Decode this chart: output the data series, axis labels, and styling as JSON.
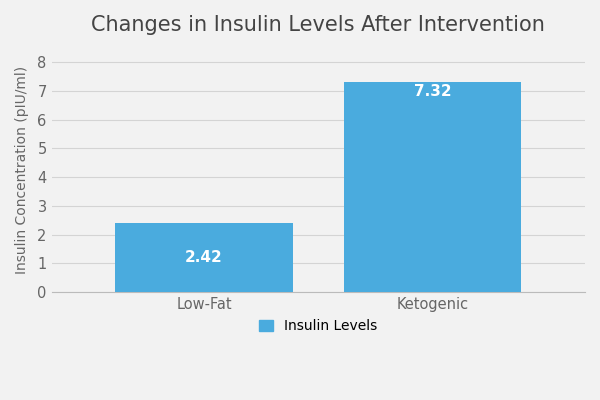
{
  "title": "Changes in Insulin Levels After Intervention",
  "categories": [
    "Low-Fat",
    "Ketogenic"
  ],
  "values": [
    2.42,
    7.32
  ],
  "bar_color": "#4AABDE",
  "bar_labels": [
    "2.42",
    "7.32"
  ],
  "ylabel": "Insulin Concentration (pIU/ml)",
  "ylim": [
    0,
    8.5
  ],
  "yticks": [
    0,
    1,
    2,
    3,
    4,
    5,
    6,
    7,
    8
  ],
  "legend_label": "Insulin Levels",
  "background_color": "#f2f2f2",
  "plot_background_color": "#f2f2f2",
  "title_fontsize": 15,
  "label_fontsize": 10,
  "tick_fontsize": 10.5,
  "bar_label_fontsize": 11,
  "bar_width": 0.35,
  "bar_label_color": "#ffffff",
  "axis_color": "#bbbbbb",
  "grid_color": "#d4d4d4",
  "title_color": "#444444",
  "tick_color": "#666666",
  "ylabel_color": "#666666",
  "label_yoffset_low": 0.12,
  "label_yoffset_high": 0.35
}
